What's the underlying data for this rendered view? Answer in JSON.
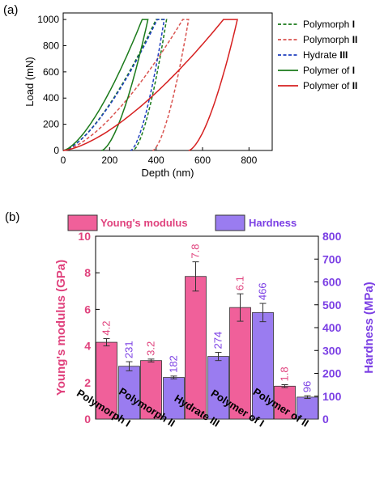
{
  "chart_data": [
    {
      "panel_label": "(a)",
      "type": "line",
      "xlabel": "Depth (nm)",
      "ylabel": "Load (mN)",
      "xlim": [
        0,
        900
      ],
      "ylim": [
        0,
        1050
      ],
      "xticks": [
        "0",
        "200",
        "400",
        "600",
        "800"
      ],
      "yticks": [
        "0",
        "200",
        "400",
        "600",
        "800",
        "1000"
      ],
      "legend": "right",
      "series": [
        {
          "name": "Polymorph I",
          "color": "#1a7a1a",
          "dash": "dashed",
          "max_depth": 445,
          "load_hold_start": 400,
          "unload_end": 300
        },
        {
          "name": "Polymorph II",
          "color": "#d9534f",
          "dash": "dashed",
          "max_depth": 540,
          "load_hold_start": 515,
          "unload_end": 385
        },
        {
          "name": "Hydrate III",
          "color": "#1f3fbf",
          "dash": "dashed",
          "max_depth": 435,
          "load_hold_start": 405,
          "unload_end": 290
        },
        {
          "name": "Polymer of I",
          "color": "#1a7a1a",
          "dash": "solid",
          "max_depth": 365,
          "load_hold_start": 340,
          "unload_end": 165
        },
        {
          "name": "Polymer of II",
          "color": "#d62020",
          "dash": "solid",
          "max_depth": 750,
          "load_hold_start": 690,
          "unload_end": 540
        }
      ],
      "legend_names": [
        {
          "text": "Polymorph ",
          "roman": "I"
        },
        {
          "text": "Polymorph ",
          "roman": "II"
        },
        {
          "text": "Hydrate ",
          "roman": "III"
        },
        {
          "text": "Polymer of ",
          "roman": "I"
        },
        {
          "text": "Polymer of ",
          "roman": "II"
        }
      ]
    },
    {
      "panel_label": "(b)",
      "type": "bar",
      "categories": [
        "Polymorph I",
        "Polymorph II",
        "Hydrate III",
        "Polymer of  I",
        "Polymer of II"
      ],
      "series": [
        {
          "name": "Young's modulus",
          "axis": "left",
          "color": "#f0609a",
          "values": [
            4.2,
            3.2,
            7.8,
            6.1,
            1.8
          ],
          "errors": [
            0.2,
            0.08,
            0.8,
            0.75,
            0.08
          ],
          "labels": [
            "4.2",
            "3.2",
            "7.8",
            "6.1",
            "1.8"
          ]
        },
        {
          "name": "Hardness",
          "axis": "right",
          "color": "#9a7cf0",
          "values": [
            231,
            182,
            274,
            466,
            96
          ],
          "errors": [
            20,
            6,
            18,
            40,
            6
          ],
          "labels": [
            "231",
            "182",
            "274",
            "466",
            "96"
          ]
        }
      ],
      "ylabel_left": "Young's modulus (GPa)",
      "ylabel_right": "Hardness (MPa)",
      "ylim_left": [
        0,
        10
      ],
      "ylim_right": [
        0,
        800
      ],
      "yticks_left": [
        "0",
        "2",
        "4",
        "6",
        "8",
        "10"
      ],
      "yticks_right": [
        "0",
        "100",
        "200",
        "300",
        "400",
        "500",
        "600",
        "700",
        "800"
      ],
      "legend": "top"
    }
  ]
}
